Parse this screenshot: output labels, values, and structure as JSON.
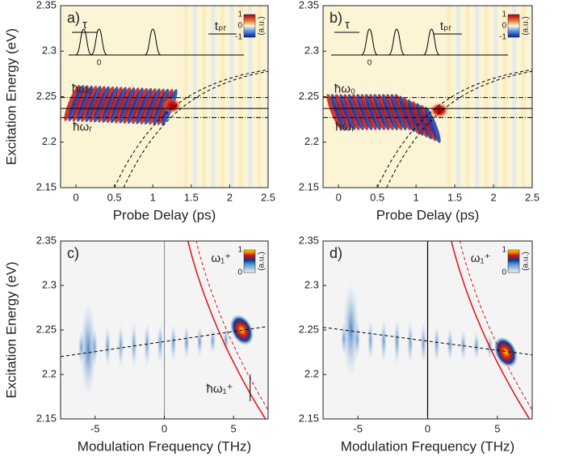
{
  "chart_data": [
    {
      "type": "heatmap",
      "label": "a)",
      "xlabel": "Probe Delay (ps)",
      "ylabel": "Excitation Energy (eV)",
      "xlim": [
        -0.2,
        2.5
      ],
      "ylim": [
        2.15,
        2.35
      ],
      "xticks": [
        0,
        0.5,
        1,
        1.5,
        2,
        2.5
      ],
      "yticks": [
        2.15,
        2.2,
        2.25,
        2.3,
        2.35
      ],
      "colorbar_ticks": [
        1,
        0,
        -1
      ],
      "colorbar_label": "(a.u.)",
      "annotations": [
        "ħω₀",
        "ħωᵣ",
        "τ",
        "tₚᵣ",
        "0"
      ]
    },
    {
      "type": "heatmap",
      "label": "b)",
      "xlabel": "Probe Delay (ps)",
      "xlim": [
        -0.2,
        2.5
      ],
      "ylim": [
        2.15,
        2.35
      ],
      "xticks": [
        0,
        0.5,
        1,
        1.5,
        2,
        2.5
      ],
      "yticks": [
        2.15,
        2.2,
        2.25,
        2.3,
        2.35
      ],
      "colorbar_ticks": [
        1,
        0,
        -1
      ],
      "colorbar_label": "(a.u.)",
      "annotations": [
        "ħω₀",
        "ħωᵣ",
        "τ",
        "tₚᵣ",
        "0"
      ]
    },
    {
      "type": "heatmap",
      "label": "c)",
      "xlabel": "Modulation Frequency (THz)",
      "ylabel": "Excitation Energy (eV)",
      "xlim": [
        -7.5,
        7.5
      ],
      "ylim": [
        2.15,
        2.35
      ],
      "xticks": [
        -5,
        0,
        5
      ],
      "yticks": [
        2.15,
        2.2,
        2.25,
        2.3,
        2.35
      ],
      "colorbar_ticks": [
        1,
        0
      ],
      "colorbar_label": "(a.u.)",
      "annotations": [
        "ω₁⁺",
        "ħω₁⁺"
      ]
    },
    {
      "type": "heatmap",
      "label": "d)",
      "xlabel": "Modulation Frequency (THz)",
      "xlim": [
        -7.5,
        7.5
      ],
      "ylim": [
        2.15,
        2.35
      ],
      "xticks": [
        -5,
        0,
        5
      ],
      "yticks": [
        2.15,
        2.2,
        2.25,
        2.3,
        2.35
      ],
      "colorbar_ticks": [
        1,
        0
      ],
      "colorbar_label": "(a.u.)",
      "annotations": [
        "ω₁⁺"
      ]
    }
  ]
}
